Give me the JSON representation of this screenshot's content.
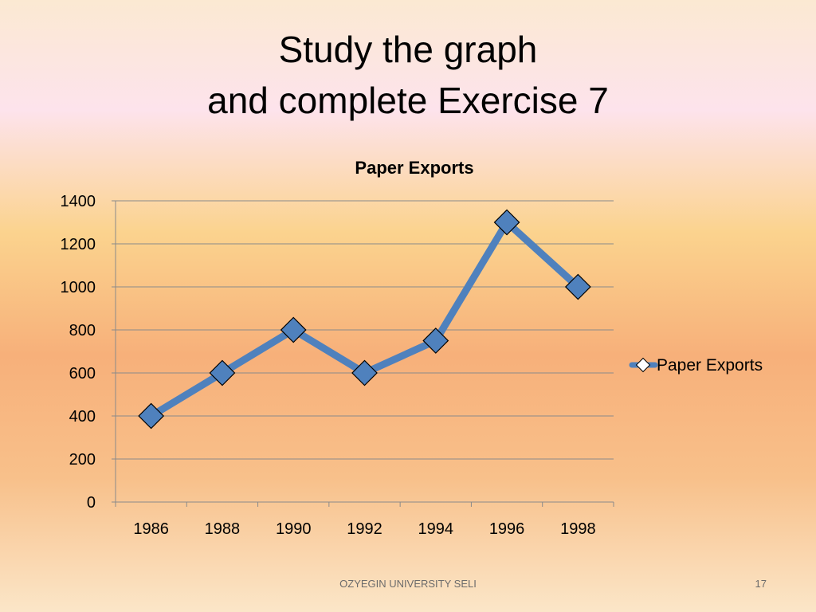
{
  "slide": {
    "title_line1": "Study the graph",
    "title_line2": "and complete Exercise 7",
    "footer": "OZYEGIN UNIVERSITY SELI",
    "page_number": "17"
  },
  "chart_data": {
    "type": "line",
    "title": "Paper Exports",
    "xlabel": "",
    "ylabel": "",
    "categories": [
      "1986",
      "1988",
      "1990",
      "1992",
      "1994",
      "1996",
      "1998"
    ],
    "series": [
      {
        "name": "Paper Exports",
        "values": [
          400,
          600,
          800,
          600,
          750,
          1300,
          1000
        ],
        "color": "#4f81bd"
      }
    ],
    "ylim": [
      0,
      1400
    ],
    "yticks": [
      0,
      200,
      400,
      600,
      800,
      1000,
      1200,
      1400
    ],
    "grid": true,
    "legend": "right",
    "marker": "diamond"
  }
}
